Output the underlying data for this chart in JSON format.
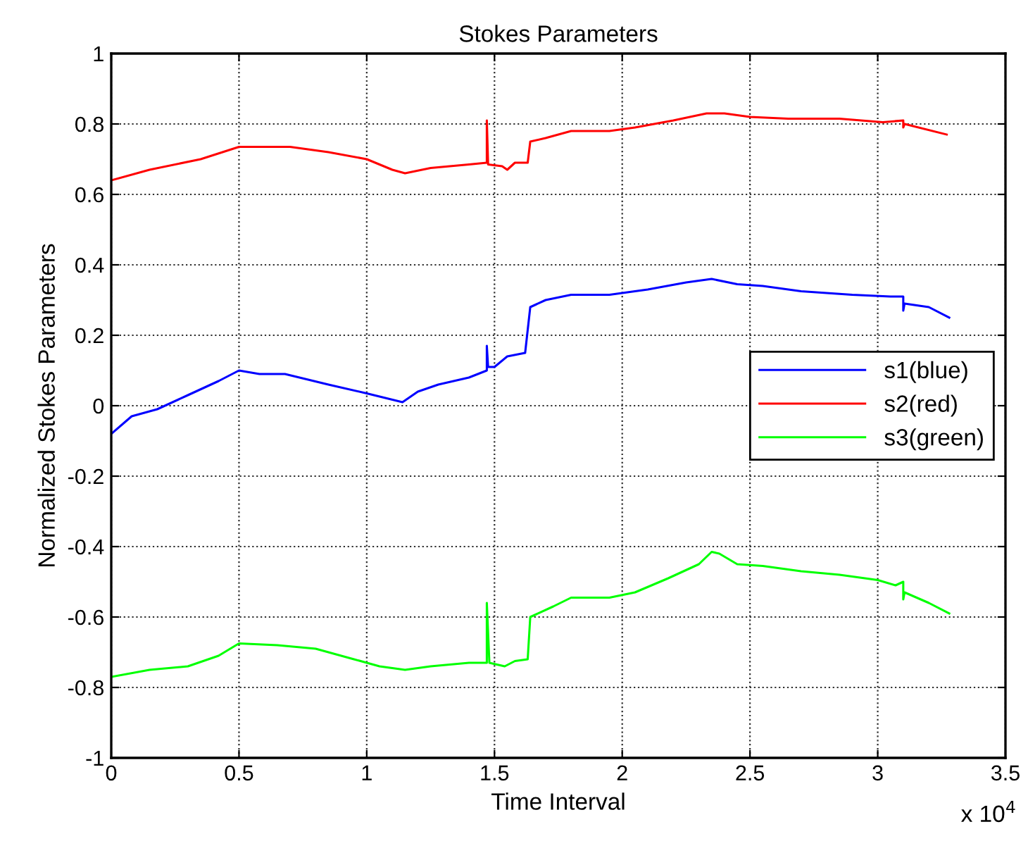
{
  "chart_data": {
    "type": "line",
    "title": "Stokes Parameters",
    "xlabel": "Time Interval",
    "ylabel": "Normalized Stokes Parameters",
    "annotations": [
      "x 10$^{4}$"
    ],
    "xlim": [
      0,
      3.5
    ],
    "xticks": [
      0,
      0.5,
      1,
      1.5,
      2,
      2.5,
      3,
      3.5
    ],
    "ylim": [
      -1,
      1
    ],
    "yticks": [
      -1,
      -0.8,
      -0.6,
      -0.4,
      -0.2,
      0,
      0.2,
      0.4,
      0.6,
      0.8,
      1
    ],
    "grid": true,
    "legend": "right",
    "line_style": "solid",
    "marker": "none",
    "series": [
      {
        "name": "s1(blue)",
        "color": "#0000ff",
        "x": [
          0,
          0.08,
          0.18,
          0.3,
          0.42,
          0.5,
          0.58,
          0.68,
          0.85,
          1.0,
          1.14,
          1.2,
          1.28,
          1.4,
          1.47,
          1.47,
          1.475,
          1.5,
          1.55,
          1.62,
          1.64,
          1.7,
          1.8,
          1.95,
          2.1,
          2.25,
          2.35,
          2.45,
          2.55,
          2.7,
          2.9,
          3.05,
          3.1,
          3.1,
          3.105,
          3.2,
          3.28
        ],
        "values": [
          -0.08,
          -0.03,
          -0.01,
          0.03,
          0.07,
          0.1,
          0.09,
          0.09,
          0.06,
          0.035,
          0.01,
          0.04,
          0.06,
          0.08,
          0.1,
          0.17,
          0.11,
          0.11,
          0.14,
          0.15,
          0.28,
          0.3,
          0.315,
          0.315,
          0.33,
          0.35,
          0.36,
          0.345,
          0.34,
          0.325,
          0.315,
          0.31,
          0.31,
          0.27,
          0.29,
          0.28,
          0.25
        ]
      },
      {
        "name": "s2(red)",
        "color": "#ff0000",
        "x": [
          0,
          0.15,
          0.35,
          0.5,
          0.7,
          0.85,
          1.0,
          1.1,
          1.15,
          1.25,
          1.4,
          1.47,
          1.47,
          1.475,
          1.53,
          1.55,
          1.58,
          1.63,
          1.64,
          1.7,
          1.8,
          1.95,
          2.05,
          2.2,
          2.33,
          2.4,
          2.5,
          2.65,
          2.85,
          3.02,
          3.1,
          3.1,
          3.105,
          3.27
        ],
        "values": [
          0.64,
          0.67,
          0.7,
          0.735,
          0.735,
          0.72,
          0.7,
          0.67,
          0.66,
          0.675,
          0.685,
          0.69,
          0.81,
          0.685,
          0.68,
          0.67,
          0.69,
          0.69,
          0.75,
          0.76,
          0.78,
          0.78,
          0.79,
          0.81,
          0.83,
          0.83,
          0.82,
          0.815,
          0.815,
          0.805,
          0.81,
          0.79,
          0.8,
          0.77
        ]
      },
      {
        "name": "s3(green)",
        "color": "#00ff00",
        "x": [
          0,
          0.15,
          0.3,
          0.42,
          0.5,
          0.65,
          0.8,
          0.95,
          1.05,
          1.15,
          1.25,
          1.4,
          1.47,
          1.47,
          1.48,
          1.54,
          1.58,
          1.63,
          1.64,
          1.73,
          1.8,
          1.95,
          2.05,
          2.18,
          2.3,
          2.35,
          2.38,
          2.45,
          2.55,
          2.7,
          2.85,
          3.0,
          3.07,
          3.1,
          3.1,
          3.105,
          3.2,
          3.28
        ],
        "values": [
          -0.77,
          -0.75,
          -0.74,
          -0.71,
          -0.675,
          -0.68,
          -0.69,
          -0.72,
          -0.74,
          -0.75,
          -0.74,
          -0.73,
          -0.73,
          -0.56,
          -0.73,
          -0.74,
          -0.725,
          -0.72,
          -0.6,
          -0.57,
          -0.545,
          -0.545,
          -0.53,
          -0.49,
          -0.45,
          -0.415,
          -0.42,
          -0.45,
          -0.455,
          -0.47,
          -0.48,
          -0.495,
          -0.51,
          -0.5,
          -0.55,
          -0.53,
          -0.56,
          -0.59
        ]
      }
    ]
  }
}
